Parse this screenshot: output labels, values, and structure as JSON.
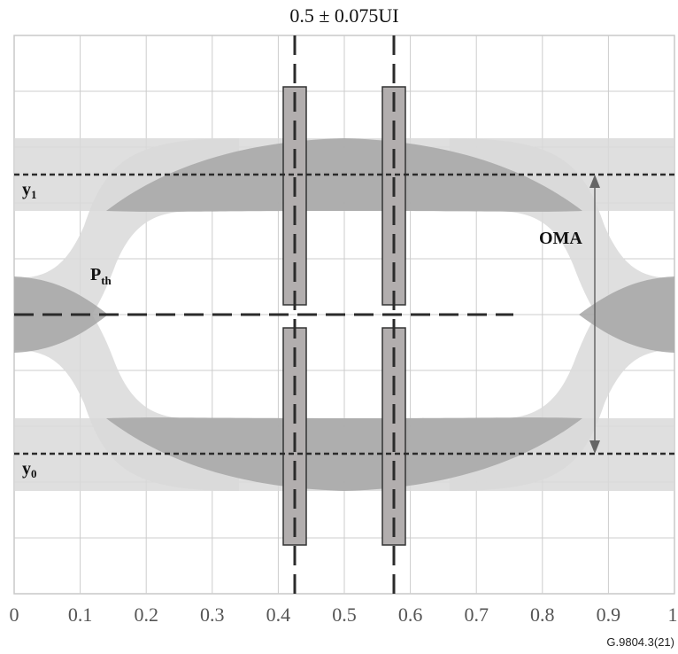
{
  "title": "0.5 ± 0.075UI",
  "labels": {
    "y1_main": "y",
    "y1_sub": "1",
    "y0_main": "y",
    "y0_sub": "0",
    "pth_main": "P",
    "pth_sub": "th",
    "oma": "OMA"
  },
  "reference": "G.9804.3(21)",
  "chart_data": {
    "type": "eye-diagram",
    "x_axis": {
      "ticks": [
        "0",
        "0.1",
        "0.2",
        "0.3",
        "0.4",
        "0.5",
        "0.6",
        "0.7",
        "0.8",
        "0.9",
        "1"
      ],
      "range": [
        0,
        1
      ],
      "unit": "UI"
    },
    "sampling_window": {
      "center": 0.5,
      "tolerance": 0.075
    },
    "grid": true
  },
  "colors": {
    "light_band": "#d9d9d9",
    "dark_band": "#a6a6a6",
    "mask": "#b2aeae",
    "grid": "#c8c8c8",
    "line": "#2b2b2b"
  }
}
